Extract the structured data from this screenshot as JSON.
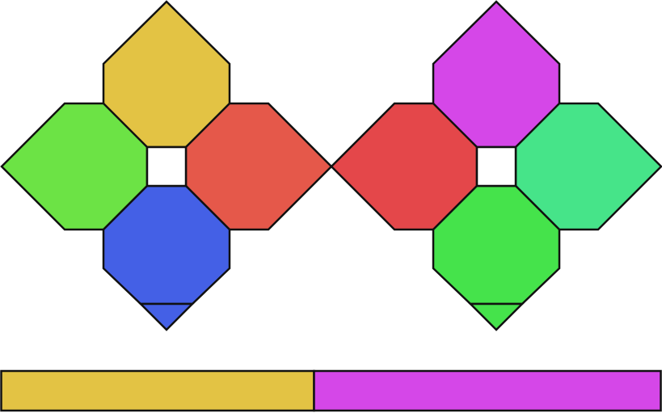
{
  "puzzle": {
    "left_cluster": {
      "top_piece_color": "#E3C344",
      "left_piece_color": "#6CE345",
      "right_piece_color": "#E5584A",
      "bottom_piece_color": "#4460E6",
      "bottom_tip_color": "#4460E6"
    },
    "right_cluster": {
      "top_piece_color": "#D547E8",
      "left_piece_color": "#E4474A",
      "right_piece_color": "#46E489",
      "bottom_piece_color": "#45E34B",
      "bottom_tip_color": "#45E34B"
    }
  },
  "colors": {
    "outline": "#111111",
    "hole": "#FFFFFF",
    "background": "#FFFFFF"
  },
  "progress_bar": {
    "left_color": "#E3C344",
    "right_color": "#D547E8",
    "left_fraction": 0.474
  }
}
